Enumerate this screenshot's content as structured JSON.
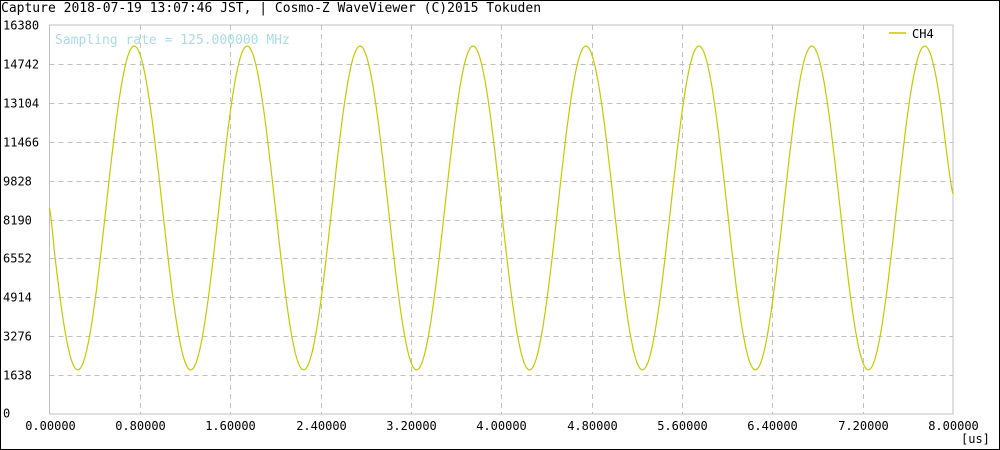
{
  "window": {
    "title": "Capture 2018-07-19 13:07:46 JST, | Cosmo-Z WaveViewer (C)2015 Tokuden"
  },
  "chart_data": {
    "type": "line",
    "annotation": "Sampling rate = 125.000000 MHz",
    "xunit": "[us]",
    "xlim": [
      0,
      8
    ],
    "ylim": [
      0,
      16380
    ],
    "xticks": [
      "0.00000",
      "0.80000",
      "1.60000",
      "2.40000",
      "3.20000",
      "4.00000",
      "4.80000",
      "5.60000",
      "6.40000",
      "7.20000",
      "8.00000"
    ],
    "yticks": [
      "0",
      "1638",
      "3276",
      "4914",
      "6552",
      "8190",
      "9828",
      "11466",
      "13104",
      "14742",
      "16380"
    ],
    "grid": true,
    "legend_position": "top-right",
    "colors": {
      "series": "#c8c800",
      "annotation": "#a8dce6",
      "grid": "#c0c0c0",
      "axes": "#c0c0c0"
    },
    "series": [
      {
        "name": "CH4",
        "x_step": 0.05,
        "values": [
          8675,
          6568,
          4666,
          3158,
          2189,
          1855,
          2189,
          3158,
          4666,
          6568,
          8675,
          10782,
          12684,
          14192,
          15161,
          15495,
          15161,
          14192,
          12684,
          10782,
          8675,
          6568,
          4666,
          3158,
          2189,
          1855,
          2189,
          3158,
          4666,
          6568,
          8675,
          10782,
          12684,
          14192,
          15161,
          15495,
          15161,
          14192,
          12684,
          10782,
          8675,
          6568,
          4666,
          3158,
          2189,
          1855,
          2189,
          3158,
          4666,
          6568,
          8675,
          10782,
          12684,
          14192,
          15161,
          15495,
          15161,
          14192,
          12684,
          10782,
          8675,
          6568,
          4666,
          3158,
          2189,
          1855,
          2189,
          3158,
          4666,
          6568,
          8675,
          10782,
          12684,
          14192,
          15161,
          15495,
          15161,
          14192,
          12684,
          10782,
          8675,
          6568,
          4666,
          3158,
          2189,
          1855,
          2189,
          3158,
          4666,
          6568,
          8675,
          10782,
          12684,
          14192,
          15161,
          15495,
          15161,
          14192,
          12684,
          10782,
          8675,
          6568,
          4666,
          3158,
          2189,
          1855,
          2189,
          3158,
          4666,
          6568,
          8675,
          10782,
          12684,
          14192,
          15161,
          15495,
          15161,
          14192,
          12684,
          10782,
          8675,
          6568,
          4666,
          3158,
          2189,
          1855,
          2189,
          3158,
          4666,
          6568,
          8675,
          10782,
          12684,
          14192,
          15161,
          15495,
          15161,
          14192,
          12684,
          10782,
          8675,
          6568,
          4666,
          3158,
          2189,
          1855,
          2189,
          3158,
          4666,
          6568,
          8675,
          10782,
          12684,
          14192,
          15161,
          15495,
          15161,
          14192,
          12684,
          10782,
          9264
        ]
      }
    ]
  }
}
